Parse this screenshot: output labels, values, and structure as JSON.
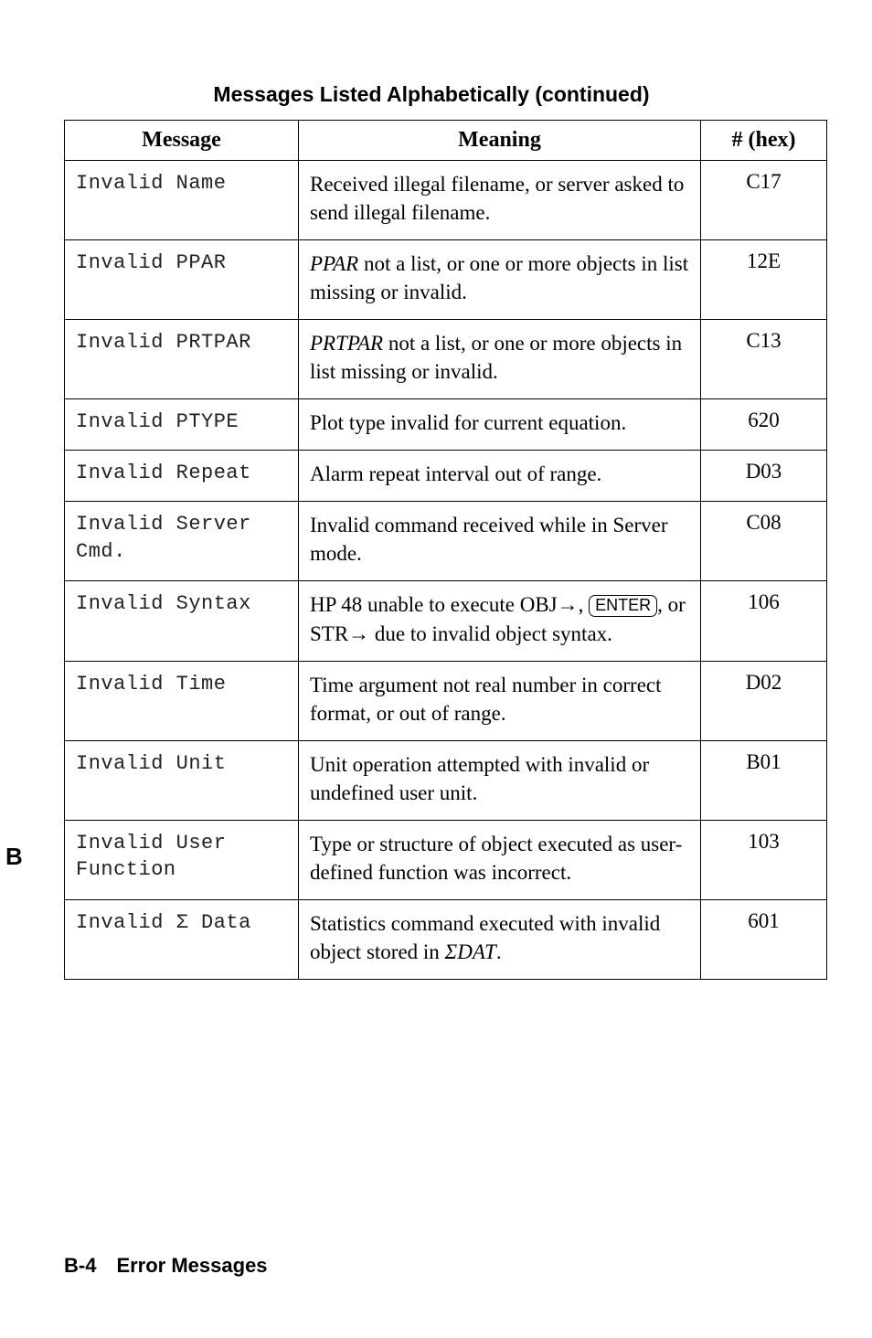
{
  "title": "Messages Listed Alphabetically (continued)",
  "columns": {
    "msg": "Message",
    "mean": "Meaning",
    "hex": "# (hex)"
  },
  "side_letter": "B",
  "footer": "B-4 Error Messages",
  "rows": [
    {
      "msg": "Invalid Name",
      "mean_html": "Received illegal filename, or server asked to send illegal filename.",
      "hex": "C17"
    },
    {
      "msg": "Invalid PPAR",
      "mean_html": "<span class=\"ital\">PPAR</span> not a list, or one or more objects in list missing or invalid.",
      "hex": "12E"
    },
    {
      "msg": "Invalid PRTPAR",
      "mean_html": "<span class=\"ital\">PRTPAR</span> not a list, or one or more objects in list missing or invalid.",
      "hex": "C13"
    },
    {
      "msg": "Invalid PTYPE",
      "mean_html": "Plot type invalid for current equation.",
      "hex": "620"
    },
    {
      "msg": "Invalid Repeat",
      "mean_html": "Alarm repeat interval out of range.",
      "hex": "D03"
    },
    {
      "msg": "Invalid Server Cmd.",
      "mean_html": "Invalid command received while in Server mode.",
      "hex": "C08"
    },
    {
      "msg": "Invalid Syntax",
      "mean_html": "HP 48 unable to execute OBJ→, <span class=\"keybox\">ENTER</span>, or STR→ due to invalid object syntax.",
      "hex": "106"
    },
    {
      "msg": "Invalid Time",
      "mean_html": "Time argument not real number in correct format, or out of range.",
      "hex": "D02"
    },
    {
      "msg": "Invalid Unit",
      "mean_html": "Unit operation attempted with invalid or undefined user unit.",
      "hex": "B01"
    },
    {
      "msg": "Invalid User Function",
      "mean_html": "Type or structure of object executed as user-defined function was incorrect.",
      "hex": "103"
    },
    {
      "msg": "Invalid Σ Data",
      "mean_html": "Statistics command executed with invalid object stored in <span class=\"ital\">ΣDAT</span>.",
      "hex": "601"
    }
  ]
}
